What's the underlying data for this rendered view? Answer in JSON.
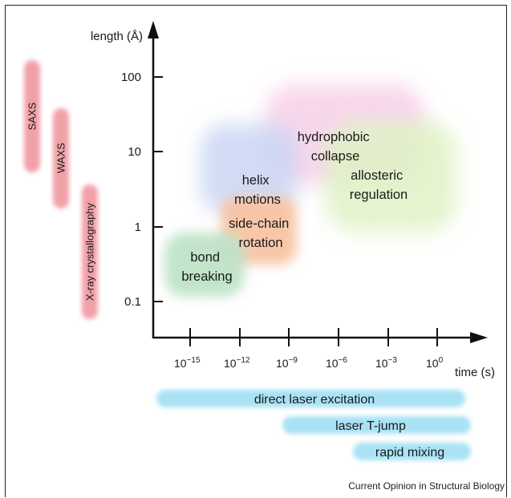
{
  "axes": {
    "y_label": "length (Å)",
    "x_label": "time (s)",
    "y_ticks": [
      "100",
      "10",
      "1",
      "0.1"
    ],
    "x_ticks": [
      {
        "base": "10",
        "exp": "−15"
      },
      {
        "base": "10",
        "exp": "−12"
      },
      {
        "base": "10",
        "exp": "−9"
      },
      {
        "base": "10",
        "exp": "−6"
      },
      {
        "base": "10",
        "exp": "−3"
      },
      {
        "base": "10",
        "exp": "0"
      }
    ]
  },
  "structural_methods": [
    {
      "label": "SAXS",
      "color": "#f2a0a8"
    },
    {
      "label": "WAXS",
      "color": "#f2a0a8"
    },
    {
      "label": "X-ray crystallography",
      "color": "#f2a0a8"
    }
  ],
  "processes": [
    {
      "lines": [
        "hydrophobic",
        "collapse"
      ],
      "color": "#f6c9e6"
    },
    {
      "lines": [
        "allosteric",
        "regulation"
      ],
      "color": "#dff3c6"
    },
    {
      "lines": [
        "helix",
        "motions"
      ],
      "color": "#c9d6f3"
    },
    {
      "lines": [
        "side-chain",
        "rotation"
      ],
      "color": "#f8c1a0"
    },
    {
      "lines": [
        "bond",
        "breaking"
      ],
      "color": "#bfe3c8"
    }
  ],
  "trigger_methods": [
    {
      "label": "direct laser excitation",
      "color": "#a9e2f5"
    },
    {
      "label": "laser T-jump",
      "color": "#a9e2f5"
    },
    {
      "label": "rapid mixing",
      "color": "#a9e2f5"
    }
  ],
  "credit": "Current Opinion in Structural Biology"
}
